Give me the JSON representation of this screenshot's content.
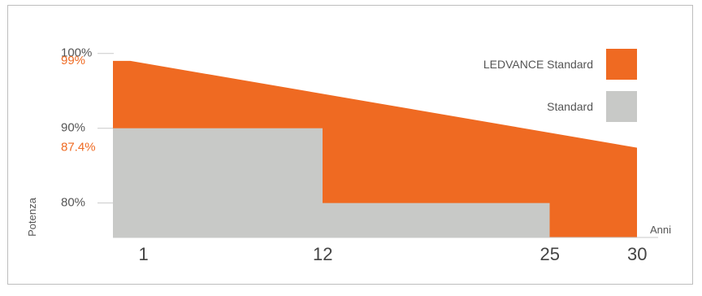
{
  "chart_data": {
    "type": "area",
    "ylabel": "Potenza",
    "xlabel": "Anni",
    "x_ticks": [
      "1",
      "12",
      "25",
      "30"
    ],
    "y_ticks": [
      {
        "label": "100%",
        "value": 100,
        "accent": false
      },
      {
        "label": "99%",
        "value": 99,
        "accent": true
      },
      {
        "label": "90%",
        "value": 90,
        "accent": false
      },
      {
        "label": "87.4%",
        "value": 87.4,
        "accent": true
      },
      {
        "label": "80%",
        "value": 80,
        "accent": false
      }
    ],
    "xlim": [
      0,
      30
    ],
    "ylim": [
      75.4,
      100
    ],
    "series": [
      {
        "name": "LEDVANCE Standard",
        "color": "#ef6a22",
        "points": [
          [
            0,
            99
          ],
          [
            1,
            99
          ],
          [
            30,
            87.4
          ]
        ]
      },
      {
        "name": "Standard",
        "color": "#c8c9c7",
        "steps": [
          {
            "from": 0,
            "to": 12,
            "value": 90
          },
          {
            "from": 12,
            "to": 25,
            "value": 80
          },
          {
            "from": 25,
            "to": 30,
            "value": 75.4
          }
        ]
      }
    ],
    "legend": {
      "position": "top-right",
      "items": [
        {
          "label": "LEDVANCE Standard",
          "color": "#ef6a22"
        },
        {
          "label": "Standard",
          "color": "#c8c9c7"
        }
      ]
    }
  }
}
